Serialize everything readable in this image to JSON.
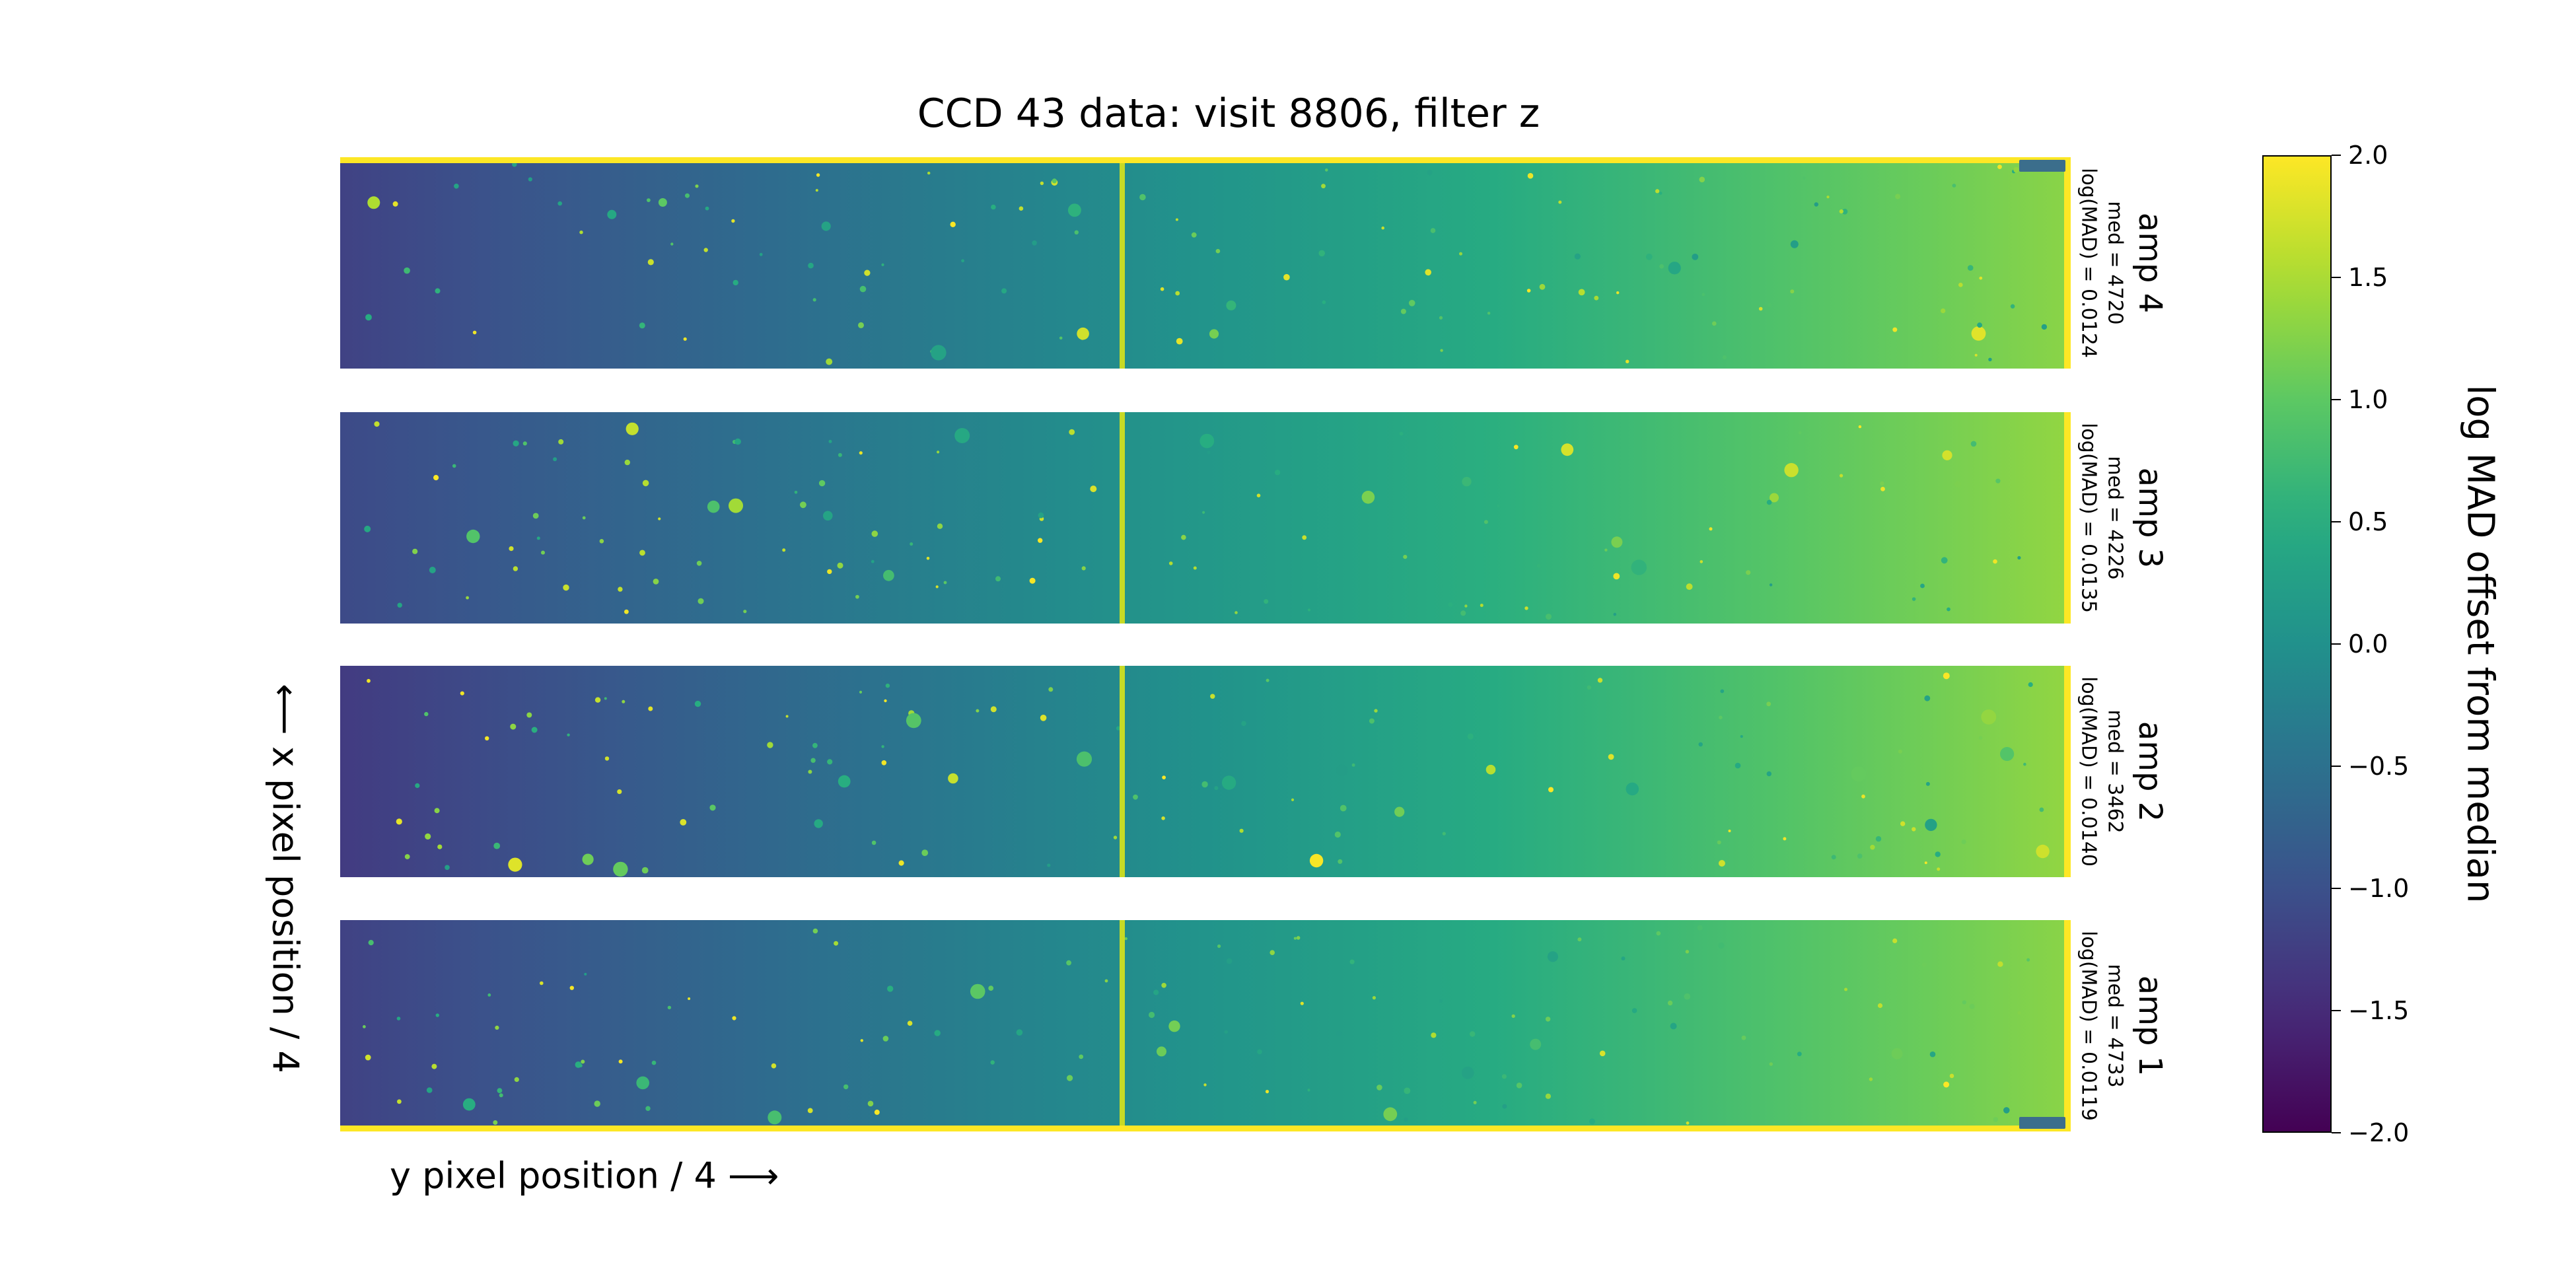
{
  "chart_data": {
    "type": "heatmap",
    "title": "CCD 43 data: visit 8806, filter z",
    "xlabel": "y pixel position / 4 ⟶",
    "ylabel": "⟵ x pixel position / 4",
    "colormap": "viridis",
    "colorbar": {
      "label": "log MAD offset from median",
      "range": [
        -2.0,
        2.0
      ],
      "ticks": [
        2.0,
        1.5,
        1.0,
        0.5,
        0.0,
        -0.5,
        -1.0,
        -1.5,
        -2.0
      ],
      "tick_labels": [
        "2.0",
        "1.5",
        "1.0",
        "0.5",
        "0.0",
        "−0.5",
        "−1.0",
        "−1.5",
        "−2.0"
      ]
    },
    "panels": [
      {
        "amp": "amp 4",
        "median": "med = 4720",
        "log_mad": "log(MAD) = 0.0124",
        "gradient_start": -1.2,
        "gradient_end": 1.3
      },
      {
        "amp": "amp 3",
        "median": "med = 4226",
        "log_mad": "log(MAD) = 0.0135",
        "gradient_start": -1.1,
        "gradient_end": 1.35
      },
      {
        "amp": "amp 2",
        "median": "med = 3462",
        "log_mad": "log(MAD) = 0.0140",
        "gradient_start": -1.3,
        "gradient_end": 1.35
      },
      {
        "amp": "amp 1",
        "median": "med = 4733",
        "log_mad": "log(MAD) = 0.0119",
        "gradient_start": -1.2,
        "gradient_end": 1.3
      }
    ]
  },
  "colors": {
    "low": "#440154",
    "mid": "#21918c",
    "high": "#fde725"
  }
}
